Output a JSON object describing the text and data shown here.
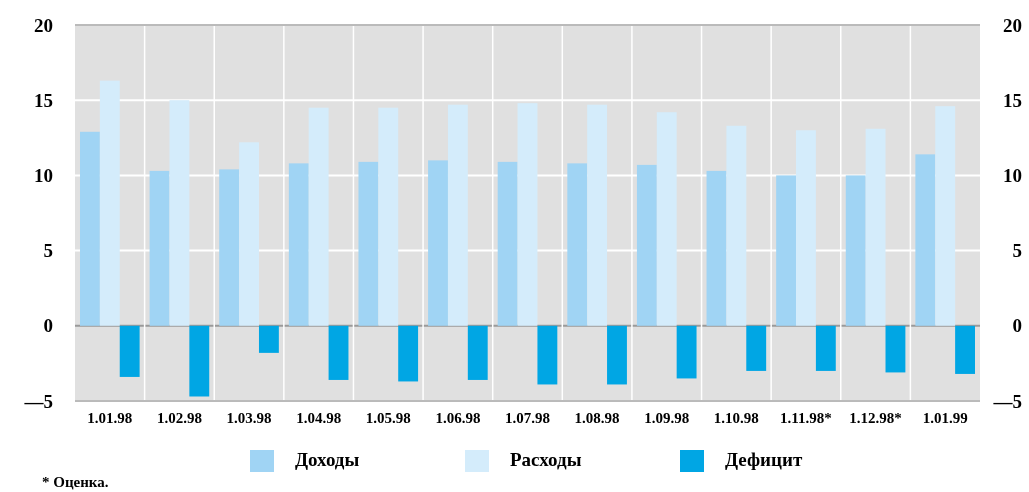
{
  "chart_data": {
    "type": "bar",
    "categories": [
      "1.01.98",
      "1.02.98",
      "1.03.98",
      "1.04.98",
      "1.05.98",
      "1.06.98",
      "1.07.98",
      "1.08.98",
      "1.09.98",
      "1.10.98",
      "1.11.98*",
      "1.12.98*",
      "1.01.99"
    ],
    "series": [
      {
        "name": "Доходы",
        "color": "#a0d4f4",
        "values": [
          12.9,
          10.3,
          10.4,
          10.8,
          10.9,
          11.0,
          10.9,
          10.8,
          10.7,
          10.3,
          10.0,
          10.0,
          11.4
        ]
      },
      {
        "name": "Расходы",
        "color": "#d4ecfb",
        "values": [
          16.3,
          15.0,
          12.2,
          14.5,
          14.5,
          14.7,
          14.8,
          14.7,
          14.2,
          13.3,
          13.0,
          13.1,
          14.6
        ]
      },
      {
        "name": "Дефицит",
        "color": "#00a6e4",
        "values": [
          -3.4,
          -4.7,
          -1.8,
          -3.6,
          -3.7,
          -3.6,
          -3.9,
          -3.9,
          -3.5,
          -3.0,
          -3.0,
          -3.1,
          -3.2
        ]
      }
    ],
    "ylim": [
      -5,
      20
    ],
    "yticks": [
      {
        "value": -5,
        "label": "—5"
      },
      0,
      5,
      10,
      15,
      20
    ],
    "y2lim": [
      -5,
      20
    ],
    "y2ticks": [
      {
        "value": -5,
        "label": "—5"
      },
      0,
      5,
      10,
      15,
      20
    ],
    "grid": true,
    "legend": "bottom",
    "annotations": [
      "* Оценка."
    ]
  }
}
